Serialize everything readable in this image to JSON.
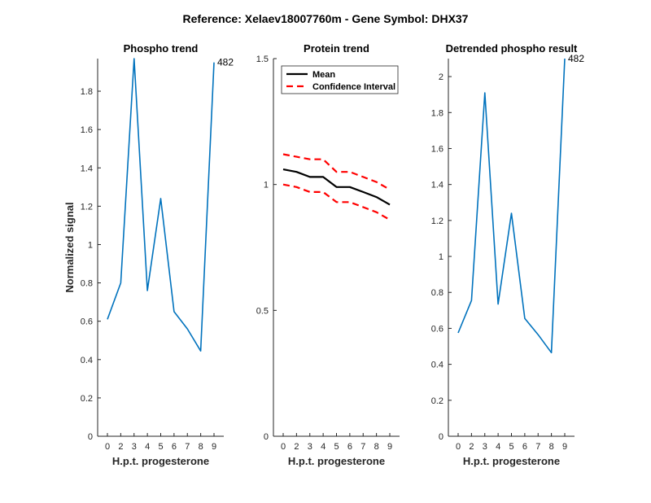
{
  "figure": {
    "suptitle": "Reference:  Xelaev18007760m - Gene Symbol:  DHX37"
  },
  "chart_data": [
    {
      "type": "line",
      "title": "Phospho trend",
      "xlabel": "H.p.t. progesterone",
      "ylabel": "Normalized signal",
      "x_ticks": [
        0,
        2,
        3,
        4,
        5,
        6,
        7,
        8,
        9
      ],
      "xlim": [
        0,
        9
      ],
      "ylim": [
        0,
        1.97
      ],
      "y_ticks": [
        0,
        0.2,
        0.4,
        0.6,
        0.8,
        1,
        1.2,
        1.4,
        1.6,
        1.8
      ],
      "series": [
        {
          "color": "#0072BD",
          "values": [
            0.61,
            0.8,
            1.97,
            0.76,
            1.24,
            0.65,
            0.56,
            0.445,
            1.95
          ]
        }
      ],
      "annotation": {
        "text": "482",
        "series_point": 8
      },
      "grid": false
    },
    {
      "type": "line",
      "title": "Protein trend",
      "xlabel": "H.p.t. progesterone",
      "ylabel": "",
      "x_ticks": [
        0,
        2,
        3,
        4,
        5,
        6,
        7,
        8,
        9
      ],
      "xlim": [
        0,
        9
      ],
      "ylim": [
        0,
        1.5
      ],
      "y_ticks": [
        0,
        0.5,
        1,
        1.5
      ],
      "series": [
        {
          "name": "Mean",
          "color": "#000000",
          "style": "solid",
          "values": [
            1.06,
            1.05,
            1.03,
            1.03,
            0.99,
            0.99,
            0.97,
            0.95,
            0.92
          ]
        },
        {
          "name": "Confidence Interval",
          "color": "#FF0000",
          "style": "dashed",
          "values": [
            1.12,
            1.11,
            1.1,
            1.1,
            1.05,
            1.05,
            1.03,
            1.01,
            0.98
          ]
        },
        {
          "name": "",
          "color": "#FF0000",
          "style": "dashed",
          "values": [
            1.0,
            0.99,
            0.97,
            0.97,
            0.93,
            0.93,
            0.91,
            0.89,
            0.86
          ]
        }
      ],
      "legend": {
        "position": "top-right",
        "entries": [
          "Mean",
          "Confidence Interval"
        ]
      },
      "grid": false
    },
    {
      "type": "line",
      "title": "Detrended phospho result",
      "xlabel": "H.p.t. progesterone",
      "ylabel": "",
      "x_ticks": [
        0,
        2,
        3,
        4,
        5,
        6,
        7,
        8,
        9
      ],
      "xlim": [
        0,
        9
      ],
      "ylim": [
        0,
        2.1
      ],
      "y_ticks": [
        0,
        0.2,
        0.4,
        0.6,
        0.8,
        1,
        1.2,
        1.4,
        1.6,
        1.8,
        2
      ],
      "series": [
        {
          "color": "#0072BD",
          "values": [
            0.575,
            0.755,
            1.91,
            0.735,
            1.24,
            0.655,
            0.565,
            0.465,
            2.1
          ]
        }
      ],
      "annotation": {
        "text": "482",
        "series_point": 8
      },
      "grid": false
    }
  ]
}
